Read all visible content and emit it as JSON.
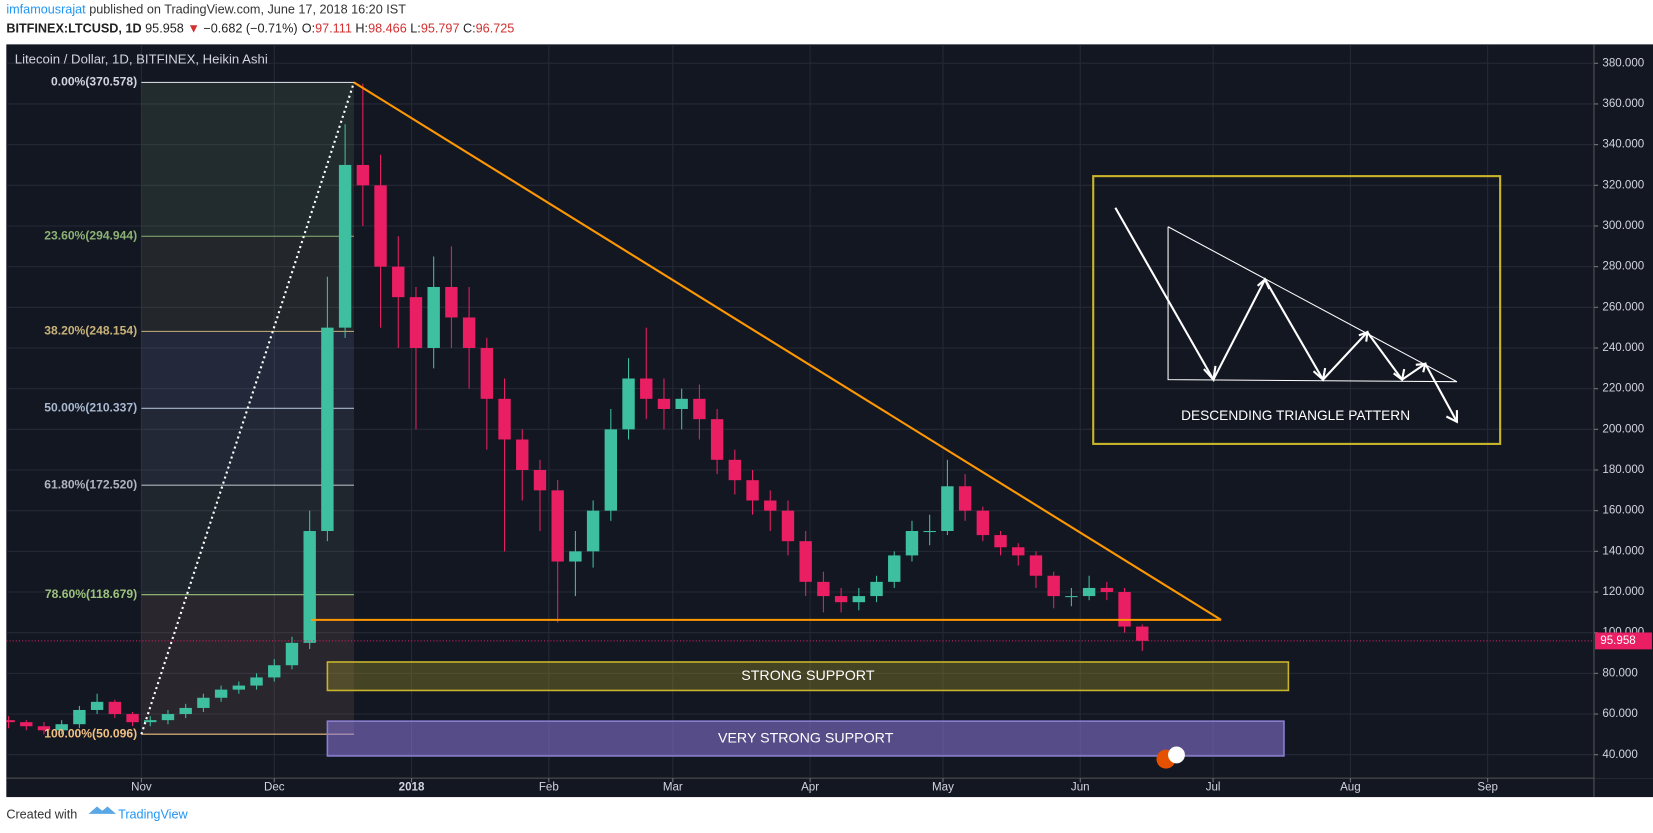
{
  "header": {
    "author": "imfamousrajat",
    "published": "published on TradingView.com, June 17, 2018 16:20 IST",
    "symbol": "BITFINEX:LTCUSD, 1D",
    "price": 95.958,
    "arrow": "▼",
    "change": "−0.682 (−0.71%)",
    "ohlc": [
      {
        "label": "O:",
        "value": 97.111
      },
      {
        "label": "H:",
        "value": 98.466
      },
      {
        "label": "L:",
        "value": 95.797
      },
      {
        "label": "C:",
        "value": 96.725
      }
    ]
  },
  "chart_data": {
    "type": "candlestick",
    "title": "Litecoin / Dollar, 1D, BITFINEX, Heikin Ashi",
    "x": [
      -30,
      -26,
      -22,
      -18,
      -14,
      -10,
      -6,
      -2,
      2,
      6,
      10,
      14,
      18,
      22,
      26,
      30,
      34,
      38,
      42,
      46,
      50,
      54,
      58,
      62,
      66,
      70,
      74,
      78,
      82,
      86,
      90,
      94,
      98,
      102,
      106,
      110,
      114,
      118,
      122,
      126,
      130,
      134,
      138,
      142,
      146,
      150,
      154,
      158,
      162,
      166,
      170,
      174,
      178,
      182,
      186,
      190,
      194,
      198,
      202,
      206,
      210,
      214,
      218,
      222,
      226
    ],
    "open": [
      57,
      56,
      54,
      52,
      55,
      62,
      66,
      60,
      56,
      57,
      60,
      63,
      68,
      72,
      74,
      78,
      84,
      95,
      150,
      250,
      330,
      320,
      280,
      265,
      240,
      270,
      255,
      240,
      215,
      195,
      180,
      170,
      135,
      140,
      160,
      200,
      225,
      215,
      210,
      215,
      205,
      185,
      175,
      165,
      160,
      145,
      125,
      118,
      115,
      118,
      125,
      138,
      150,
      150,
      172,
      160,
      148,
      142,
      138,
      128,
      118,
      118,
      122,
      120,
      103
    ],
    "high": [
      59,
      57,
      56,
      57,
      64,
      70,
      67,
      61,
      59,
      62,
      65,
      70,
      74,
      76,
      80,
      87,
      98,
      160,
      275,
      350,
      370,
      335,
      295,
      270,
      285,
      290,
      270,
      245,
      225,
      200,
      185,
      175,
      150,
      165,
      210,
      235,
      250,
      225,
      220,
      222,
      210,
      190,
      180,
      170,
      165,
      150,
      130,
      122,
      122,
      128,
      140,
      155,
      158,
      185,
      178,
      162,
      150,
      144,
      140,
      130,
      122,
      128,
      125,
      122,
      104
    ],
    "low": [
      53,
      52,
      50,
      50,
      53,
      60,
      58,
      54,
      54,
      55,
      58,
      61,
      66,
      70,
      72,
      76,
      82,
      92,
      145,
      245,
      300,
      250,
      240,
      200,
      230,
      240,
      220,
      190,
      140,
      165,
      150,
      105,
      118,
      132,
      155,
      195,
      205,
      200,
      200,
      195,
      178,
      168,
      158,
      150,
      138,
      118,
      110,
      110,
      111,
      115,
      122,
      135,
      143,
      148,
      155,
      145,
      138,
      133,
      122,
      112,
      113,
      116,
      116,
      100,
      91
    ],
    "close": [
      56,
      54,
      52,
      55,
      62,
      66,
      60,
      56,
      57,
      60,
      63,
      68,
      72,
      74,
      78,
      84,
      95,
      150,
      250,
      330,
      320,
      280,
      265,
      240,
      270,
      255,
      240,
      215,
      195,
      180,
      170,
      135,
      140,
      160,
      200,
      225,
      215,
      210,
      215,
      205,
      185,
      175,
      165,
      160,
      145,
      125,
      118,
      115,
      118,
      125,
      138,
      150,
      150,
      172,
      160,
      148,
      142,
      138,
      128,
      118,
      118,
      122,
      120,
      103,
      96
    ],
    "up_color": "#3dbfa0",
    "down_color": "#e91e63",
    "xlim": [
      -30.5,
      328
    ],
    "xticks": [
      {
        "value": 0,
        "label": "Nov"
      },
      {
        "value": 30,
        "label": "Dec"
      },
      {
        "value": 61,
        "label": "2018"
      },
      {
        "value": 92,
        "label": "Feb"
      },
      {
        "value": 120,
        "label": "Mar"
      },
      {
        "value": 151,
        "label": "Apr"
      },
      {
        "value": 181,
        "label": "May"
      },
      {
        "value": 212,
        "label": "Jun"
      },
      {
        "value": 242,
        "label": "Jul"
      },
      {
        "value": 273,
        "label": "Aug"
      },
      {
        "value": 304,
        "label": "Sep"
      }
    ],
    "ylim": [
      28.5,
      389.3
    ],
    "yticks": [
      {
        "value": 40,
        "label": "40.000"
      },
      {
        "value": 60,
        "label": "60.000"
      },
      {
        "value": 80,
        "label": "80.000"
      },
      {
        "value": 100,
        "label": "100.000"
      },
      {
        "value": 120,
        "label": "120.000"
      },
      {
        "value": 140,
        "label": "140.000"
      },
      {
        "value": 160,
        "label": "160.000"
      },
      {
        "value": 180,
        "label": "180.000"
      },
      {
        "value": 200,
        "label": "200.000"
      },
      {
        "value": 220,
        "label": "220.000"
      },
      {
        "value": 240,
        "label": "240.000"
      },
      {
        "value": 260,
        "label": "260.000"
      },
      {
        "value": 280,
        "label": "280.000"
      },
      {
        "value": 300,
        "label": "300.000"
      },
      {
        "value": 320,
        "label": "320.000"
      },
      {
        "value": 340,
        "label": "340.000"
      },
      {
        "value": 360,
        "label": "360.000"
      },
      {
        "value": 380,
        "label": "380.000"
      }
    ],
    "grid": true,
    "last_price": 95.958,
    "fib_x": [
      0,
      48
    ],
    "fib_levels": [
      {
        "label": "0.00%(370.578)",
        "value": 370.578,
        "color": "#d1d4dc"
      },
      {
        "label": "23.60%(294.944)",
        "value": 294.944,
        "color": "#8bb174"
      },
      {
        "label": "38.20%(248.154)",
        "value": 248.154,
        "color": "#c8b27a"
      },
      {
        "label": "50.00%(210.337)",
        "value": 210.337,
        "color": "#a9b8cf"
      },
      {
        "label": "61.80%(172.520)",
        "value": 172.52,
        "color": "#b0b4bc"
      },
      {
        "label": "78.60%(118.679)",
        "value": 118.679,
        "color": "#9cc47c"
      },
      {
        "label": "100.00%(50.096)",
        "value": 50.096,
        "color": "#f0c080"
      }
    ],
    "trend_lines": [
      {
        "x": [
          48,
          243.8
        ],
        "y": [
          370.578,
          106.3
        ],
        "color": "#ff9800",
        "dash": false
      },
      {
        "x": [
          38.3,
          243.8
        ],
        "y": [
          106.3,
          106.3
        ],
        "color": "#ff9800",
        "dash": false
      },
      {
        "x": [
          0,
          48
        ],
        "y": [
          50.096,
          370.578
        ],
        "color": "#ffffff",
        "dash": true
      }
    ],
    "zones": [
      {
        "label": "STRONG SUPPORT",
        "x": [
          42,
          259
        ],
        "y": [
          71.6,
          85.6
        ],
        "fill": "rgba(160,150,40,0.35)",
        "stroke": "#c9b52a"
      },
      {
        "label": "VERY STRONG SUPPORT",
        "x": [
          42,
          258
        ],
        "y": [
          39.4,
          56.5
        ],
        "fill": "rgba(140,120,220,0.55)",
        "stroke": "#8a7fd0"
      }
    ],
    "pattern_label": "DESCENDING TRIANGLE PATTERN"
  },
  "footer": {
    "created": "Created with",
    "brand": "TradingView"
  }
}
